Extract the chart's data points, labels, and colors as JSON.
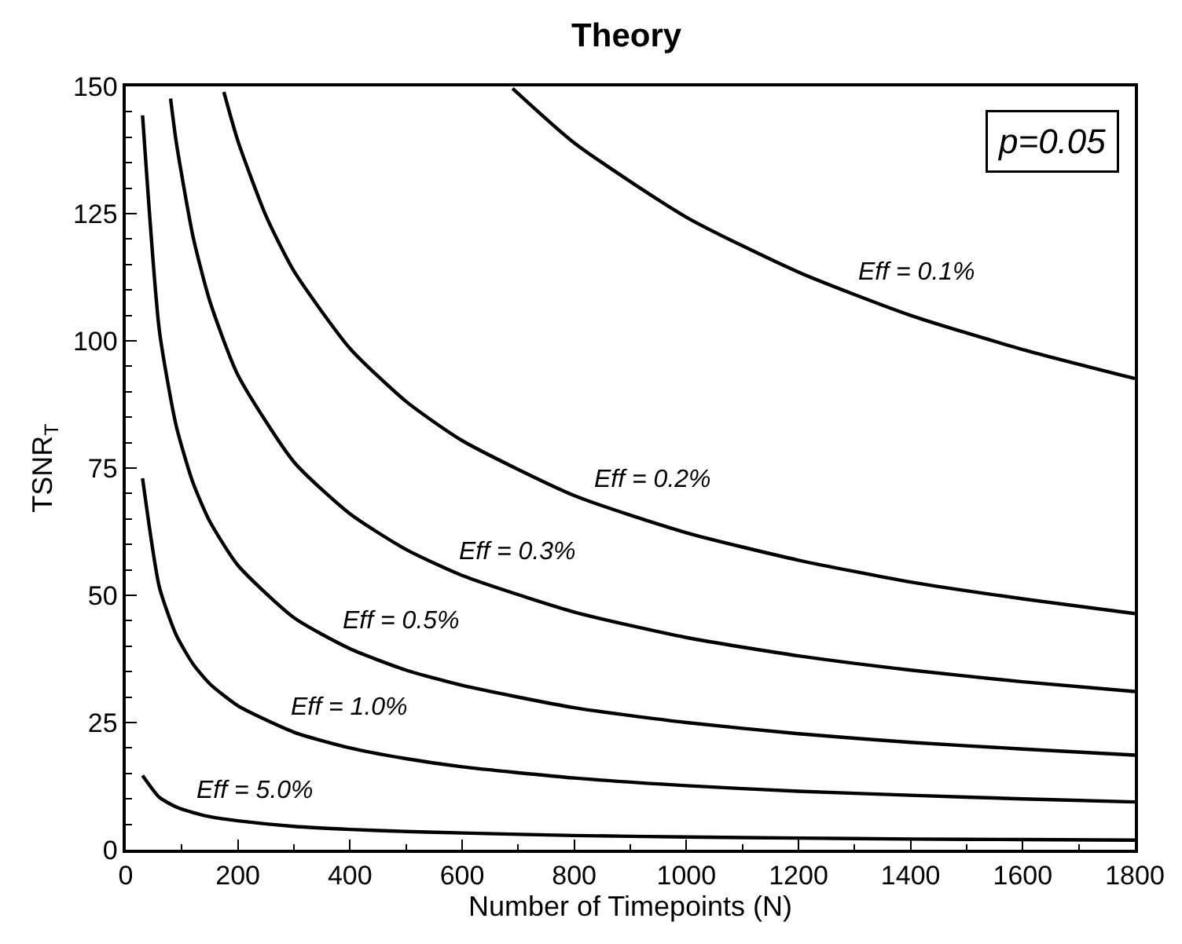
{
  "chart_data": {
    "type": "line",
    "title": "Theory",
    "xlabel": "Number of Timepoints (N)",
    "ylabel": "TSNR$_{T}$",
    "xlim": [
      0,
      1800
    ],
    "ylim": [
      0,
      150
    ],
    "xticks": [
      0,
      200,
      400,
      600,
      800,
      1000,
      1200,
      1400,
      1600,
      1800
    ],
    "yticks": [
      0,
      25,
      50,
      75,
      100,
      125,
      150
    ],
    "legend": false,
    "marker": "none",
    "line_style": "solid",
    "annotations": [
      "p=0.05"
    ],
    "series": [
      {
        "name": "Eff = 0.1%",
        "color": "#000000",
        "x": [
          690,
          800,
          1000,
          1200,
          1400,
          1600,
          1800
        ],
        "values": [
          149.6,
          138.9,
          124.3,
          113.5,
          105,
          98.3,
          92.6
        ]
      },
      {
        "name": "Eff = 0.2%",
        "color": "#000000",
        "x": [
          175,
          200,
          250,
          300,
          400,
          500,
          600,
          800,
          1000,
          1200,
          1400,
          1600,
          1800
        ],
        "values": [
          148.9,
          139.3,
          124.6,
          113.7,
          98.5,
          88.1,
          80.4,
          69.6,
          62.3,
          56.9,
          52.6,
          49.3,
          46.4
        ]
      },
      {
        "name": "Eff = 0.3%",
        "color": "#000000",
        "x": [
          80,
          90,
          120,
          150,
          200,
          300,
          400,
          500,
          600,
          800,
          1000,
          1200,
          1400,
          1600,
          1800
        ],
        "values": [
          147.6,
          139.1,
          120.5,
          107.8,
          93.3,
          76.2,
          66,
          59,
          53.9,
          46.7,
          41.7,
          38.1,
          35.3,
          33,
          31.1
        ]
      },
      {
        "name": "Eff = 0.5%",
        "color": "#000000",
        "x": [
          30,
          60,
          90,
          120,
          150,
          200,
          300,
          400,
          500,
          600,
          800,
          1000,
          1200,
          1400,
          1600,
          1800
        ],
        "values": [
          144.3,
          102,
          83.3,
          72.1,
          64.5,
          55.9,
          45.6,
          39.5,
          35.3,
          32.3,
          27.9,
          25,
          22.8,
          21.1,
          19.8,
          18.6
        ]
      },
      {
        "name": "Eff = 1.0%",
        "color": "#000000",
        "x": [
          30,
          60,
          90,
          120,
          150,
          200,
          300,
          400,
          500,
          600,
          800,
          1000,
          1200,
          1400,
          1600,
          1800
        ],
        "values": [
          73,
          51.6,
          42.2,
          36.5,
          32.6,
          28.3,
          23.1,
          20,
          17.9,
          16.3,
          14.1,
          12.6,
          11.5,
          10.7,
          10,
          9.4
        ]
      },
      {
        "name": "Eff = 5.0%",
        "color": "#000000",
        "x": [
          30,
          60,
          90,
          120,
          150,
          200,
          300,
          400,
          500,
          600,
          800,
          1000,
          1200,
          1400,
          1600,
          1800
        ],
        "values": [
          14.6,
          10.3,
          8.4,
          7.3,
          6.5,
          5.7,
          4.6,
          4,
          3.6,
          3.3,
          2.8,
          2.5,
          2.3,
          2.1,
          2,
          1.9
        ]
      }
    ]
  }
}
